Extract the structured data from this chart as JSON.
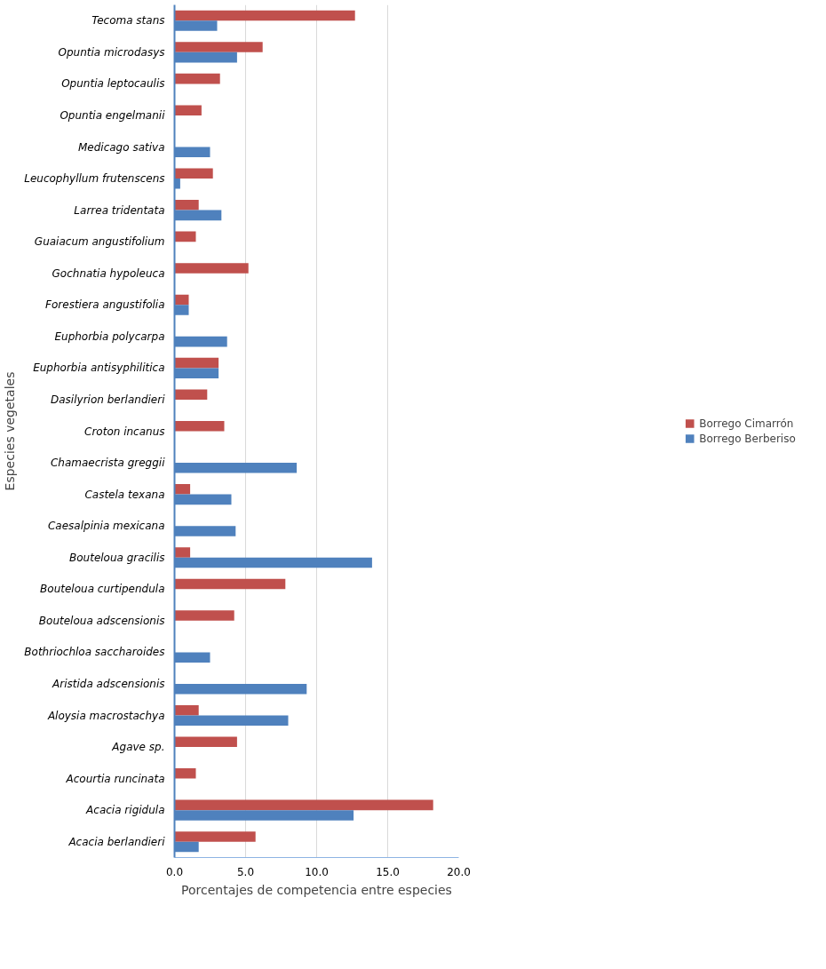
{
  "chart_data": {
    "type": "bar",
    "orientation": "horizontal",
    "xlabel": "Porcentajes de competencia entre especies",
    "ylabel": "Especies vegetales",
    "categories": [
      "Tecoma stans",
      "Opuntia microdasys",
      "Opuntia leptocaulis",
      "Opuntia engelmanii",
      "Medicago sativa",
      "Leucophyllum frutenscens",
      "Larrea tridentata",
      "Guaiacum angustifolium",
      "Gochnatia hypoleuca",
      "Forestiera angustifolia",
      "Euphorbia polycarpa",
      "Euphorbia antisyphilitica",
      "Dasilyrion berlandieri",
      "Croton incanus",
      "Chamaecrista greggii",
      "Castela texana",
      "Caesalpinia mexicana",
      "Bouteloua gracilis",
      "Bouteloua curtipendula",
      "Bouteloua adscensionis",
      "Bothriochloa saccharoides",
      "Aristida adscensionis",
      "Aloysia macrostachya",
      "Agave sp.",
      "Acourtia runcinata",
      "Acacia rigidula",
      "Acacia berlandieri"
    ],
    "series": [
      {
        "name": "Borrego Cimarrón",
        "color": "#c0504d",
        "values": [
          12.7,
          6.2,
          3.2,
          1.9,
          null,
          2.7,
          1.7,
          1.5,
          5.2,
          1.0,
          null,
          3.1,
          2.3,
          3.5,
          null,
          1.1,
          null,
          1.1,
          7.8,
          4.2,
          null,
          null,
          1.7,
          4.4,
          1.5,
          18.2,
          5.7
        ]
      },
      {
        "name": "Borrego Berberiso",
        "color": "#4f81bd",
        "values": [
          3.0,
          4.4,
          null,
          null,
          2.5,
          0.4,
          3.3,
          null,
          null,
          1.0,
          3.7,
          3.1,
          null,
          null,
          8.6,
          4.0,
          4.3,
          13.9,
          null,
          null,
          2.5,
          9.3,
          8.0,
          null,
          null,
          12.6,
          1.7
        ]
      }
    ],
    "xlim": [
      0,
      20
    ],
    "xticks": [
      {
        "value": 0,
        "label": "0.0"
      },
      {
        "value": 5,
        "label": "5.0"
      },
      {
        "value": 10,
        "label": "10.0"
      },
      {
        "value": 15,
        "label": "15.0"
      },
      {
        "value": 20,
        "label": "20.0"
      }
    ],
    "grid": "x",
    "legend": "right"
  }
}
